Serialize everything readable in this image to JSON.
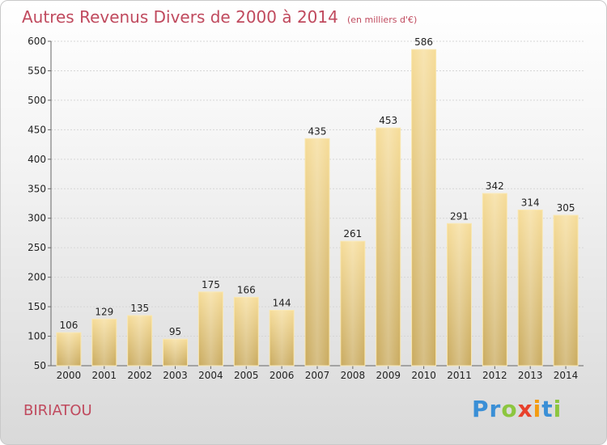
{
  "chart_data": {
    "type": "bar",
    "title": "Autres Revenus Divers de 2000 à 2014",
    "subtitle": "(en milliers d'€)",
    "categories": [
      "2000",
      "2001",
      "2002",
      "2003",
      "2004",
      "2005",
      "2006",
      "2007",
      "2008",
      "2009",
      "2010",
      "2011",
      "2012",
      "2013",
      "2014"
    ],
    "values": [
      106,
      129,
      135,
      95,
      175,
      166,
      144,
      435,
      261,
      453,
      586,
      291,
      342,
      314,
      305
    ],
    "ylim": [
      50,
      600
    ],
    "yticks": [
      50,
      100,
      150,
      200,
      250,
      300,
      350,
      400,
      450,
      500,
      550,
      600
    ],
    "grid": true,
    "bar_color": "#e8c878"
  },
  "commune": "BIRIATOU",
  "logo": {
    "text": "Proxiti"
  }
}
